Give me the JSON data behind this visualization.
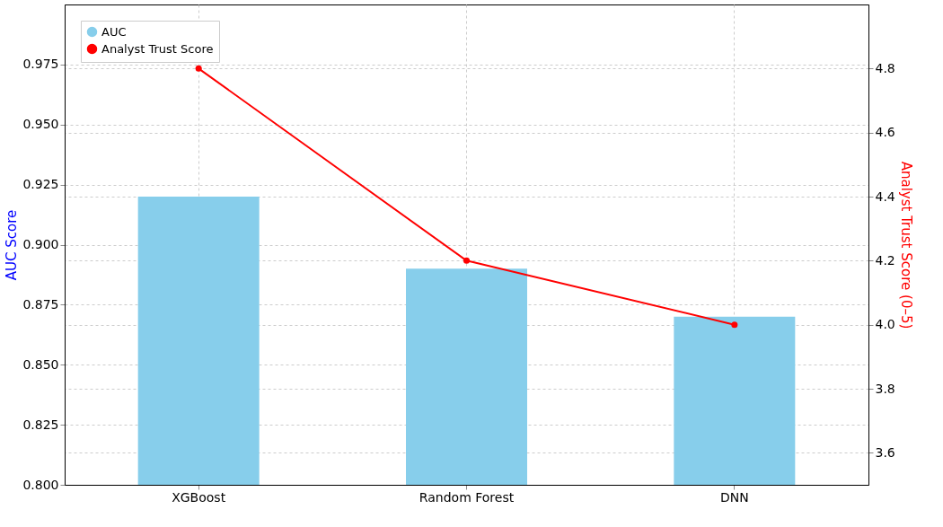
{
  "chart_data": {
    "type": "bar",
    "ylabel": "AUC Score",
    "y2label": "Analyst Trust Score (0–5)",
    "categories": [
      "XGBoost",
      "Random Forest",
      "DNN"
    ],
    "series": [
      {
        "name": "AUC",
        "color": "#87ceeb",
        "values": [
          0.92,
          0.89,
          0.87
        ]
      },
      {
        "name": "Analyst Trust Score",
        "type": "line",
        "axis": "y2",
        "color": "#ff0000",
        "values": [
          4.8,
          4.2,
          4.0
        ]
      }
    ],
    "ylim": [
      0.8,
      1.0
    ],
    "yticks": [
      {
        "value": 0.8,
        "label": "0.800"
      },
      {
        "value": 0.825,
        "label": "0.825"
      },
      {
        "value": 0.85,
        "label": "0.850"
      },
      {
        "value": 0.875,
        "label": "0.875"
      },
      {
        "value": 0.9,
        "label": "0.900"
      },
      {
        "value": 0.925,
        "label": "0.925"
      },
      {
        "value": 0.95,
        "label": "0.950"
      },
      {
        "value": 0.975,
        "label": "0.975"
      }
    ],
    "y2lim": [
      3.5,
      5.0
    ],
    "y2ticks": [
      {
        "value": 3.6,
        "label": "3.6"
      },
      {
        "value": 3.8,
        "label": "3.8"
      },
      {
        "value": 4.0,
        "label": "4.0"
      },
      {
        "value": 4.2,
        "label": "4.2"
      },
      {
        "value": 4.4,
        "label": "4.4"
      },
      {
        "value": 4.6,
        "label": "4.6"
      },
      {
        "value": 4.8,
        "label": "4.8"
      }
    ],
    "grid": true,
    "legend": "top left",
    "marker": "circle",
    "line_style": "solid"
  }
}
